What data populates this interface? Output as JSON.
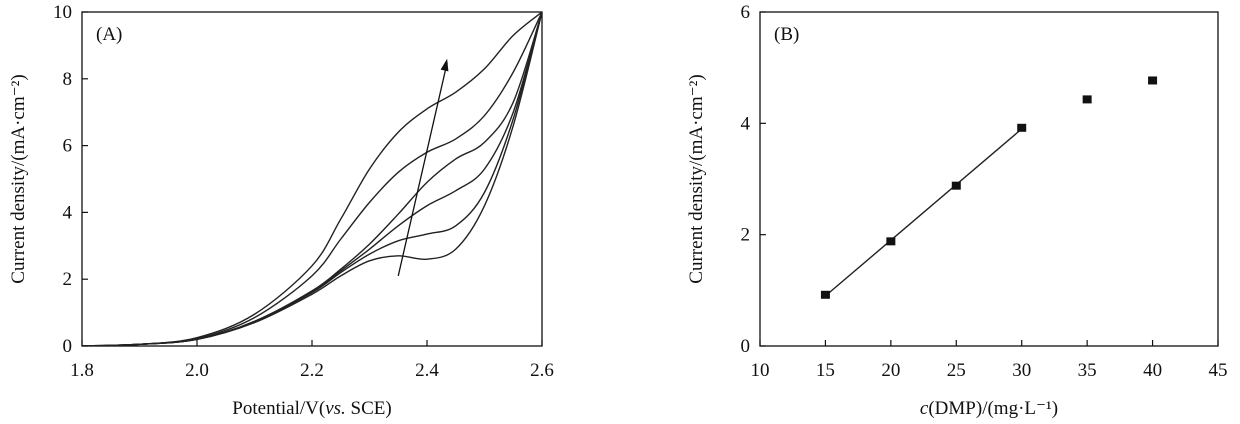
{
  "chart_data": [
    {
      "type": "line",
      "panel_label": "(A)",
      "xlabel": "Potential/V(vs. SCE)",
      "xlabel_parts": [
        "Potential/V(",
        "vs.",
        " SCE)"
      ],
      "ylabel": "Current density/(mA·cm⁻²)",
      "xlim": [
        1.8,
        2.6
      ],
      "ylim": [
        0,
        10
      ],
      "x_ticks": [
        "1.8",
        "2.0",
        "2.2",
        "2.4",
        "2.6"
      ],
      "y_ticks": [
        "0",
        "2",
        "4",
        "6",
        "8",
        "10"
      ],
      "grid": false,
      "annotations": [
        {
          "type": "arrow",
          "from": [
            2.35,
            2.1
          ],
          "to": [
            2.435,
            8.6
          ]
        }
      ],
      "series": [
        {
          "x": [
            1.8,
            1.9,
            2.0,
            2.1,
            2.2,
            2.25,
            2.3,
            2.35,
            2.4,
            2.45,
            2.5,
            2.55,
            2.6
          ],
          "y": [
            0,
            0.05,
            0.2,
            0.7,
            1.55,
            2.1,
            2.55,
            2.7,
            2.6,
            2.9,
            4.2,
            6.6,
            10.0
          ]
        },
        {
          "x": [
            1.8,
            1.9,
            2.0,
            2.1,
            2.2,
            2.25,
            2.3,
            2.35,
            2.4,
            2.45,
            2.5,
            2.55,
            2.6
          ],
          "y": [
            0,
            0.05,
            0.2,
            0.72,
            1.6,
            2.2,
            2.75,
            3.15,
            3.35,
            3.6,
            4.6,
            6.8,
            10.0
          ]
        },
        {
          "x": [
            1.8,
            1.9,
            2.0,
            2.1,
            2.2,
            2.25,
            2.3,
            2.35,
            2.4,
            2.45,
            2.5,
            2.55,
            2.6
          ],
          "y": [
            0,
            0.05,
            0.2,
            0.72,
            1.62,
            2.25,
            2.9,
            3.6,
            4.2,
            4.65,
            5.3,
            7.0,
            10.0
          ]
        },
        {
          "x": [
            1.8,
            1.9,
            2.0,
            2.1,
            2.2,
            2.25,
            2.3,
            2.35,
            2.4,
            2.45,
            2.5,
            2.55,
            2.6
          ],
          "y": [
            0,
            0.05,
            0.2,
            0.74,
            1.65,
            2.3,
            3.05,
            3.95,
            4.9,
            5.6,
            6.1,
            7.3,
            10.0
          ]
        },
        {
          "x": [
            1.8,
            1.9,
            2.0,
            2.1,
            2.2,
            2.25,
            2.3,
            2.35,
            2.4,
            2.45,
            2.5,
            2.55,
            2.6
          ],
          "y": [
            0,
            0.05,
            0.22,
            0.85,
            2.1,
            3.2,
            4.3,
            5.2,
            5.8,
            6.2,
            6.9,
            8.2,
            10.0
          ]
        },
        {
          "x": [
            1.8,
            1.9,
            2.0,
            2.1,
            2.2,
            2.25,
            2.3,
            2.35,
            2.4,
            2.45,
            2.5,
            2.55,
            2.6
          ],
          "y": [
            0,
            0.05,
            0.25,
            0.95,
            2.4,
            3.8,
            5.3,
            6.4,
            7.1,
            7.6,
            8.3,
            9.3,
            10.0
          ]
        }
      ]
    },
    {
      "type": "scatter",
      "panel_label": "(B)",
      "xlabel": "c(DMP)/(mg·L⁻¹)",
      "xlabel_parts": [
        "c",
        "(DMP)/(mg·L⁻¹)"
      ],
      "ylabel": "Current density/(mA·cm⁻²)",
      "xlim": [
        10,
        45
      ],
      "ylim": [
        0,
        6
      ],
      "x_ticks": [
        "10",
        "15",
        "20",
        "25",
        "30",
        "35",
        "40",
        "45"
      ],
      "y_ticks": [
        "0",
        "2",
        "4",
        "6"
      ],
      "grid": false,
      "points": {
        "x": [
          15,
          20,
          25,
          30,
          35,
          40
        ],
        "y": [
          0.92,
          1.88,
          2.88,
          3.92,
          4.43,
          4.77
        ]
      },
      "fit_line": {
        "x": [
          15,
          30
        ],
        "y": [
          0.9,
          3.9
        ]
      }
    }
  ]
}
